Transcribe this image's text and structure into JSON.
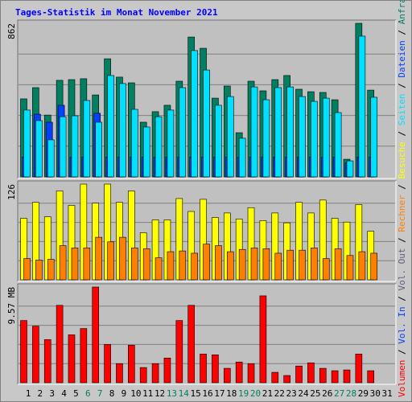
{
  "title": "Tages-Statistik im Monat November 2021",
  "chart_data": [
    {
      "type": "bar",
      "ylim": [
        0,
        862
      ],
      "yticks": [
        862
      ],
      "grid": true,
      "series": [
        {
          "name": "Anfragen",
          "color": "#008060",
          "values": [
            438,
            501,
            347,
            542,
            546,
            551,
            460,
            663,
            560,
            528,
            307,
            366,
            402,
            537,
            785,
            722,
            442,
            510,
            248,
            537,
            483,
            546,
            569,
            492,
            478,
            474,
            433,
            99,
            862,
            487,
            null
          ]
        },
        {
          "name": "Dateien",
          "color": "#0040ff",
          "values": [
            110,
            352,
            307,
            402,
            110,
            110,
            357,
            110,
            110,
            110,
            110,
            110,
            110,
            110,
            110,
            110,
            110,
            110,
            110,
            110,
            110,
            110,
            110,
            110,
            110,
            110,
            110,
            80,
            110,
            110,
            null
          ]
        },
        {
          "name": "Seiten",
          "color": "#00e0ff",
          "values": [
            375,
            316,
            208,
            338,
            343,
            429,
            307,
            569,
            524,
            379,
            280,
            338,
            375,
            501,
            709,
            600,
            402,
            451,
            217,
            505,
            433,
            501,
            505,
            451,
            424,
            442,
            361,
            90,
            790,
            447,
            null
          ]
        }
      ]
    },
    {
      "type": "bar",
      "ylim": [
        0,
        126
      ],
      "yticks": [
        126
      ],
      "grid": true,
      "series": [
        {
          "name": "Besuche",
          "color": "#ffff00",
          "values": [
            81,
            102,
            83,
            117,
            98,
            126,
            101,
            126,
            102,
            117,
            62,
            79,
            79,
            107,
            90,
            106,
            82,
            88,
            80,
            95,
            78,
            88,
            75,
            102,
            88,
            105,
            81,
            76,
            99,
            64,
            null
          ]
        },
        {
          "name": "Rechner",
          "color": "#ff8000",
          "values": [
            28,
            26,
            27,
            45,
            42,
            42,
            56,
            50,
            56,
            42,
            41,
            29,
            37,
            38,
            35,
            47,
            45,
            37,
            40,
            42,
            41,
            35,
            39,
            39,
            42,
            28,
            41,
            32,
            37,
            35,
            null
          ]
        }
      ]
    },
    {
      "type": "bar",
      "ylim": [
        0,
        9.57
      ],
      "yticks": [
        {
          "value": 9.57,
          "label": "9.57 MB"
        }
      ],
      "grid": true,
      "extra_legend": [
        {
          "name": "Vol. Out",
          "color": "#606080"
        },
        {
          "name": "Vol. In",
          "color": "#0040ff"
        }
      ],
      "series": [
        {
          "name": "Volumen",
          "color": "#ff0000",
          "values": [
            6.22,
            5.66,
            4.31,
            7.74,
            4.79,
            5.42,
            9.57,
            3.83,
            1.91,
            3.75,
            1.52,
            1.91,
            2.47,
            6.22,
            7.74,
            2.87,
            2.79,
            1.44,
            2.07,
            1.91,
            8.69,
            1.04,
            0.72,
            1.67,
            1.99,
            1.44,
            1.2,
            1.28,
            2.87,
            1.2,
            null
          ]
        }
      ],
      "categories": [
        "1",
        "2",
        "3",
        "4",
        "5",
        "6",
        "7",
        "8",
        "9",
        "10",
        "11",
        "12",
        "13",
        "14",
        "15",
        "16",
        "17",
        "18",
        "19",
        "20",
        "21",
        "22",
        "23",
        "24",
        "25",
        "26",
        "27",
        "28",
        "29",
        "30",
        "31"
      ],
      "category_colors": [
        "#000000",
        "#000000",
        "#000000",
        "#000000",
        "#000000",
        "#008060",
        "#008060",
        "#000000",
        "#000000",
        "#000000",
        "#000000",
        "#000000",
        "#008060",
        "#008060",
        "#000000",
        "#000000",
        "#000000",
        "#000000",
        "#008060",
        "#008060",
        "#000000",
        "#000000",
        "#000000",
        "#000000",
        "#000000",
        "#000000",
        "#008060",
        "#008060",
        "#000000",
        "#000000",
        "#000000"
      ]
    }
  ]
}
